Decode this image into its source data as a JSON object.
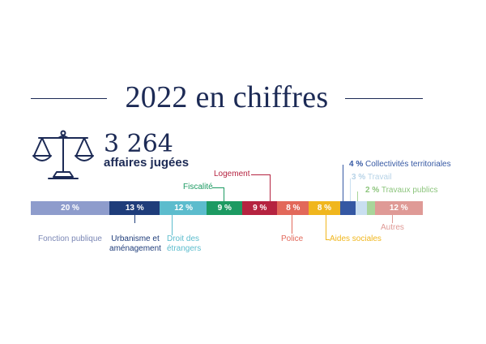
{
  "title": "2022 en chiffres",
  "summary": {
    "value": "3 264",
    "label": "affaires jugées"
  },
  "chart_data": {
    "type": "bar",
    "orientation": "stacked-horizontal",
    "series": [
      {
        "name": "Fonction publique",
        "value": 20,
        "bar_label": "20 %",
        "color": "#8e9ccc"
      },
      {
        "name": "Urbanisme et aménagement",
        "value": 13,
        "bar_label": "13 %",
        "color": "#1f3d7a"
      },
      {
        "name": "Droit des étrangers",
        "value": 12,
        "bar_label": "12 %",
        "color": "#5cbccd"
      },
      {
        "name": "Fiscalité",
        "value": 9,
        "bar_label": "9 %",
        "color": "#1c9a62"
      },
      {
        "name": "Logement",
        "value": 9,
        "bar_label": "9 %",
        "color": "#b52340"
      },
      {
        "name": "Police",
        "value": 8,
        "bar_label": "8 %",
        "color": "#e2685a"
      },
      {
        "name": "Aides sociales",
        "value": 8,
        "bar_label": "8 %",
        "color": "#f0b61d"
      },
      {
        "name": "Collectivités territoriales",
        "value": 4,
        "bar_label": "4 %",
        "color": "#3558a3"
      },
      {
        "name": "Travail",
        "value": 3,
        "bar_label": "3 %",
        "color": "#c9dff0"
      },
      {
        "name": "Travaux publics",
        "value": 2,
        "bar_label": "2 %",
        "color": "#a8d59a"
      },
      {
        "name": "Autres",
        "value": 12,
        "bar_label": "12 %",
        "color": "#df9a96"
      }
    ]
  }
}
